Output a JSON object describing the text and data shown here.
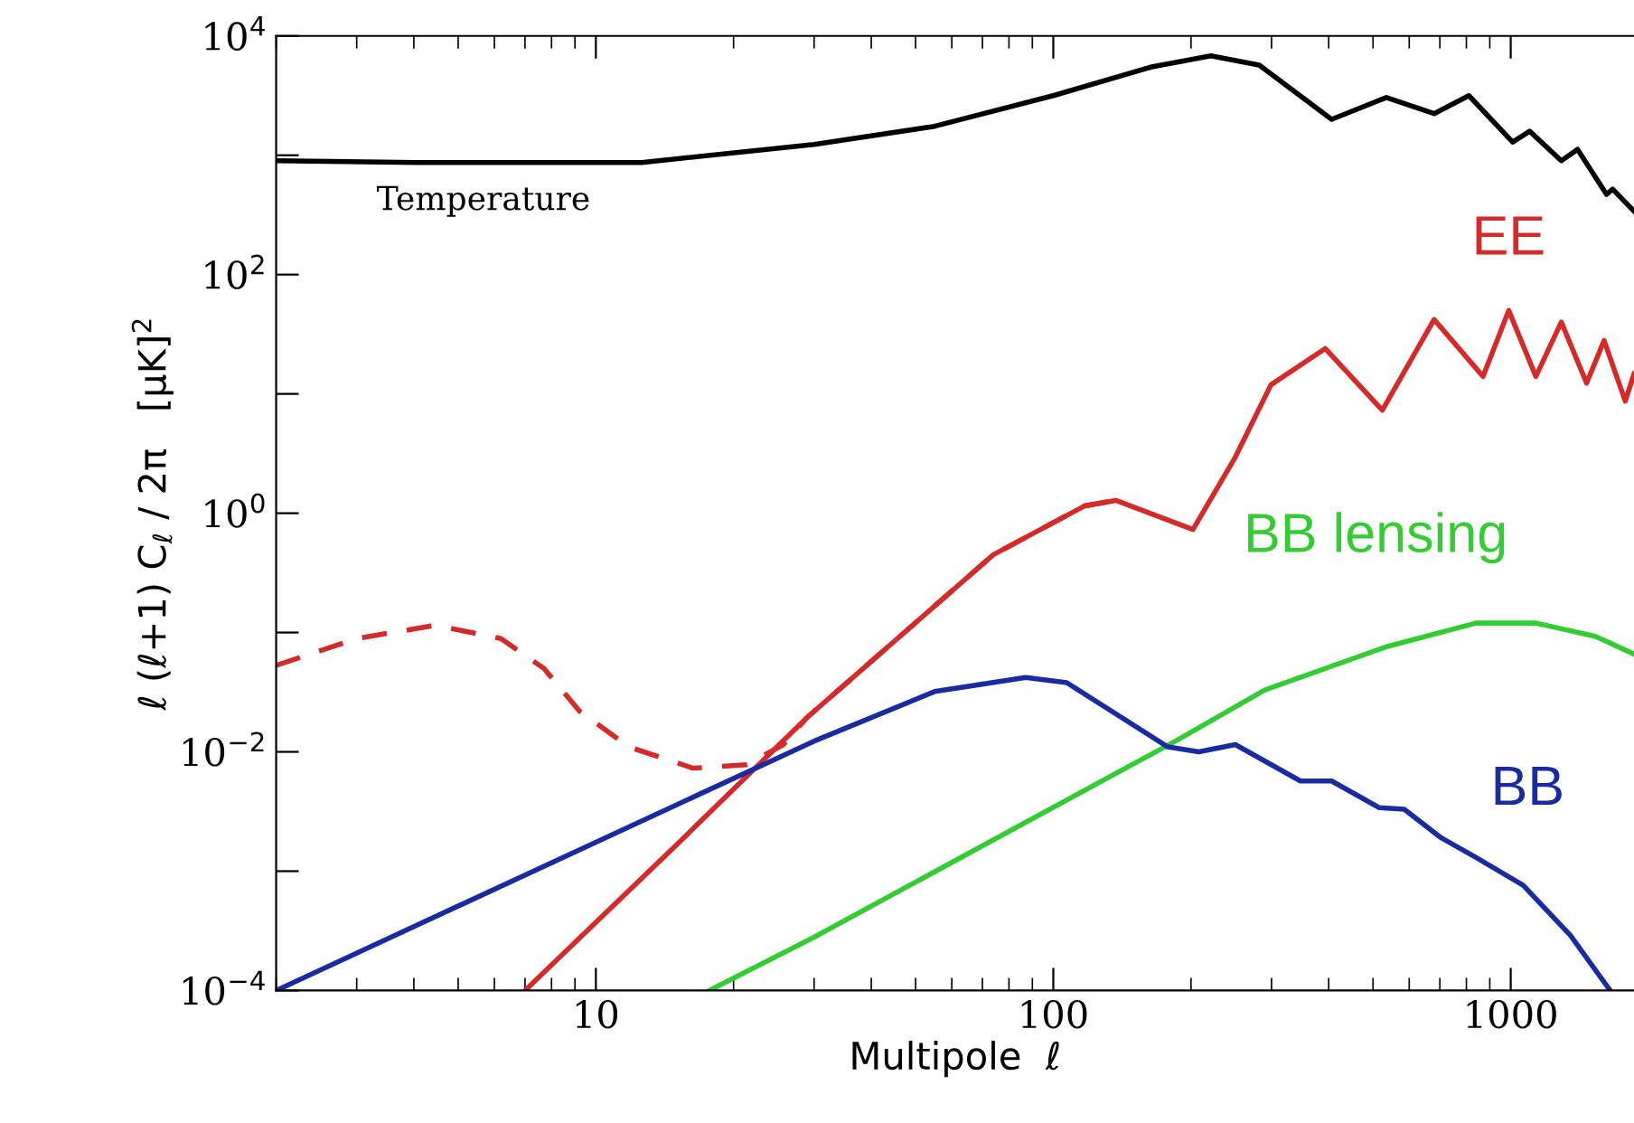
{
  "chart_data": {
    "type": "line",
    "xlabel": "Multipole  ℓ",
    "ylabel": "ℓ (ℓ+1) C$_{ℓ}$ / 2π   [μK]$^{2}$",
    "log": "xy",
    "grid": false,
    "legend": false,
    "marker": "none",
    "xlim": [
      2,
      1860
    ],
    "ylim": [
      0.0001,
      10000
    ],
    "xticks": [
      10,
      100,
      1000
    ],
    "yticks": [
      {
        "value": 0.0001,
        "label": "10$^{−4}$"
      },
      {
        "value": 0.001,
        "label": null
      },
      {
        "value": 0.01,
        "label": "10$^{−2}$"
      },
      {
        "value": 0.1,
        "label": null
      },
      {
        "value": 1,
        "label": "10$^{0}$"
      },
      {
        "value": 10,
        "label": null
      },
      {
        "value": 100,
        "label": "10$^{2}$"
      },
      {
        "value": 1000,
        "label": null
      },
      {
        "value": 10000,
        "label": "10$^{4}$"
      }
    ],
    "series": [
      {
        "name": "Temperature",
        "color": "#000000",
        "line_style": "solid",
        "x": [
          2,
          4.06,
          12.6,
          30,
          55,
          100,
          164,
          221,
          282,
          406,
          535,
          680,
          810,
          1010,
          1100,
          1290,
          1400,
          1620,
          1670,
          1860
        ],
        "values": [
          900,
          870,
          870,
          1230,
          1750,
          3160,
          5500,
          6800,
          5700,
          2000,
          3050,
          2230,
          3160,
          1290,
          1590,
          900,
          1120,
          470,
          520,
          340
        ]
      },
      {
        "name": "EE",
        "color": "#d42a2a",
        "line_style": "solid",
        "x": [
          7.0,
          15,
          29,
          74,
          117,
          137,
          202,
          250,
          299,
          393,
          524,
          680,
          870,
          990,
          1135,
          1290,
          1465,
          1600,
          1780,
          1860
        ],
        "values": [
          0.0001,
          0.00166,
          0.0195,
          0.45,
          1.15,
          1.28,
          0.73,
          2.95,
          11.9,
          24,
          7.3,
          42,
          14,
          50,
          14,
          40,
          12.3,
          28,
          8.7,
          14.7
        ]
      },
      {
        "color": "#d42a2a",
        "line_style": "dashed",
        "x": [
          2,
          3.0,
          4.46,
          6.2,
          7.7,
          9.2,
          11.8,
          16.3,
          21.4,
          25.7,
          29,
          74,
          117,
          137
        ],
        "values": [
          0.053,
          0.089,
          0.115,
          0.089,
          0.05,
          0.022,
          0.011,
          0.0073,
          0.0078,
          0.0115,
          0.0195,
          0.45,
          1.15,
          1.28
        ]
      },
      {
        "name": "BB lensing",
        "color": "#33cc33",
        "line_style": "solid",
        "x": [
          17.7,
          30,
          185,
          290,
          535,
          840,
          1135,
          1530,
          1860
        ],
        "values": [
          0.0001,
          0.00028,
          0.0123,
          0.033,
          0.076,
          0.12,
          0.12,
          0.093,
          0.066
        ]
      },
      {
        "name": "BB",
        "color": "#1a2aa0",
        "line_style": "solid",
        "x": [
          2,
          10,
          30,
          55,
          87,
          107,
          178,
          208,
          250,
          347,
          406,
          516,
          585,
          705,
          840,
          1065,
          1350,
          1650
        ],
        "values": [
          0.0001,
          0.00175,
          0.0123,
          0.032,
          0.042,
          0.038,
          0.011,
          0.01,
          0.0115,
          0.0057,
          0.0057,
          0.0034,
          0.0033,
          0.0019,
          0.0013,
          0.00076,
          0.00029,
          0.0001
        ]
      }
    ]
  }
}
